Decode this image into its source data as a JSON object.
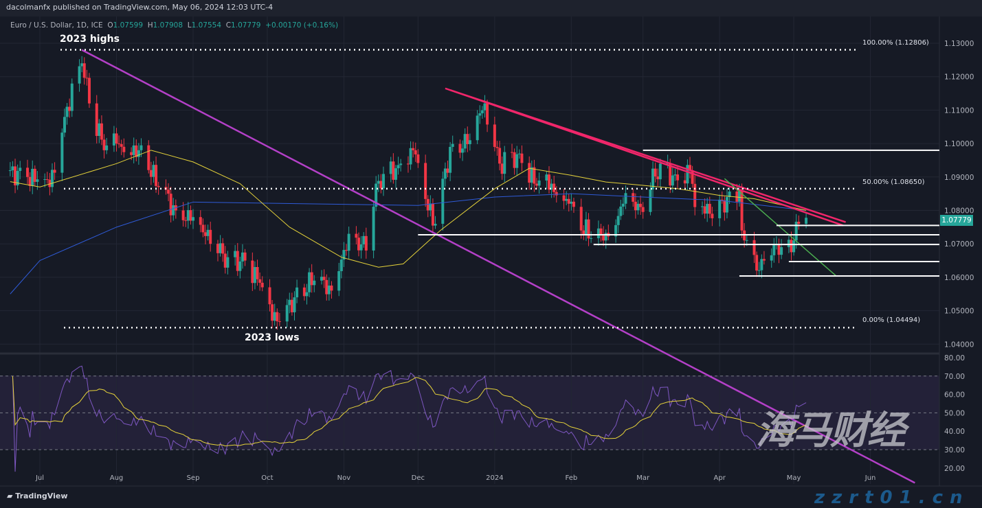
{
  "header": {
    "publisher": "dacolmanfx published on TradingView.com, May 06, 2024 12:03 UTC-4"
  },
  "legend": {
    "symbol": "Euro / U.S. Dollar, 1D, ICE",
    "o_label": "O",
    "o": "1.07599",
    "h_label": "H",
    "h": "1.07908",
    "l_label": "L",
    "l": "1.07554",
    "c_label": "C",
    "c": "1.07779",
    "change": "+0.00170 (+0.16%)"
  },
  "annotations": {
    "highs": "2023 highs",
    "lows": "2023 lows",
    "fib100": "100.00% (1.12806)",
    "fib50": "50.00% (1.08650)",
    "fib0": "0.00% (1.04494)"
  },
  "last_price": "1.07779",
  "footer": {
    "brand": "TradingView"
  },
  "watermark": {
    "cn": "海马财经",
    "url": "zzrt01.cn"
  },
  "colors": {
    "up": "#26a69a",
    "down": "#f23645",
    "ma_fast": "#e6d33a",
    "ma_slow": "#2f5bd8",
    "long_trend": "#b440c8",
    "resistance": "#f0266a",
    "wedge": "#4caf50",
    "rsi": "#7e57c2",
    "rsi_ma": "#e6d33a"
  },
  "chart_data": {
    "type": "candlestick",
    "symbol": "EURUSD 1D",
    "price_axis": {
      "ticks": [
        "1.13000",
        "1.12000",
        "1.11000",
        "1.10000",
        "1.09000",
        "1.08000",
        "1.07000",
        "1.06000",
        "1.05000",
        "1.04000"
      ],
      "range": [
        1.0385,
        1.1315
      ]
    },
    "time_axis": {
      "ticks": [
        [
          "2023-07-01",
          "Jul"
        ],
        [
          "2023-08-01",
          "Aug"
        ],
        [
          "2023-09-01",
          "Sep"
        ],
        [
          "2023-10-01",
          "Oct"
        ],
        [
          "2023-11-01",
          "Nov"
        ],
        [
          "2023-12-01",
          "Dec"
        ],
        [
          "2024-01-01",
          "2024"
        ],
        [
          "2024-02-01",
          "Feb"
        ],
        [
          "2024-03-01",
          "Mar"
        ],
        [
          "2024-04-01",
          "Apr"
        ],
        [
          "2024-05-01",
          "May"
        ],
        [
          "2024-06-01",
          "Jun"
        ]
      ]
    },
    "close_path": [
      [
        "2023-06-19",
        1.092
      ],
      [
        "2023-06-26",
        1.09
      ],
      [
        "2023-07-05",
        1.087
      ],
      [
        "2023-07-12",
        1.111
      ],
      [
        "2023-07-18",
        1.124
      ],
      [
        "2023-07-21",
        1.112
      ],
      [
        "2023-07-27",
        1.098
      ],
      [
        "2023-08-01",
        1.1
      ],
      [
        "2023-08-10",
        1.098
      ],
      [
        "2023-08-18",
        1.087
      ],
      [
        "2023-08-25",
        1.08
      ],
      [
        "2023-09-01",
        1.078
      ],
      [
        "2023-09-08",
        1.07
      ],
      [
        "2023-09-15",
        1.066
      ],
      [
        "2023-09-22",
        1.065
      ],
      [
        "2023-09-29",
        1.057
      ],
      [
        "2023-10-03",
        1.047
      ],
      [
        "2023-10-12",
        1.054
      ],
      [
        "2023-10-20",
        1.059
      ],
      [
        "2023-10-27",
        1.056
      ],
      [
        "2023-11-03",
        1.073
      ],
      [
        "2023-11-10",
        1.068
      ],
      [
        "2023-11-14",
        1.088
      ],
      [
        "2023-11-24",
        1.094
      ],
      [
        "2023-11-29",
        1.098
      ],
      [
        "2023-12-05",
        1.08
      ],
      [
        "2023-12-08",
        1.076
      ],
      [
        "2023-12-14",
        1.099
      ],
      [
        "2023-12-22",
        1.101
      ],
      [
        "2023-12-28",
        1.112
      ],
      [
        "2024-01-03",
        1.094
      ],
      [
        "2024-01-11",
        1.097
      ],
      [
        "2024-01-17",
        1.088
      ],
      [
        "2024-01-24",
        1.088
      ],
      [
        "2024-01-31",
        1.082
      ],
      [
        "2024-02-05",
        1.074
      ],
      [
        "2024-02-14",
        1.071
      ],
      [
        "2024-02-22",
        1.082
      ],
      [
        "2024-02-29",
        1.081
      ],
      [
        "2024-03-08",
        1.094
      ],
      [
        "2024-03-15",
        1.089
      ],
      [
        "2024-03-20",
        1.092
      ],
      [
        "2024-03-22",
        1.081
      ],
      [
        "2024-03-28",
        1.079
      ],
      [
        "2024-04-04",
        1.084
      ],
      [
        "2024-04-09",
        1.086
      ],
      [
        "2024-04-10",
        1.074
      ],
      [
        "2024-04-16",
        1.062
      ],
      [
        "2024-04-19",
        1.065
      ],
      [
        "2024-04-24",
        1.07
      ],
      [
        "2024-04-26",
        1.069
      ],
      [
        "2024-05-01",
        1.071
      ],
      [
        "2024-05-03",
        1.076
      ],
      [
        "2024-05-06",
        1.0778
      ]
    ],
    "ma_fast": [
      [
        "2023-06-19",
        1.0886
      ],
      [
        "2023-07-01",
        1.087
      ],
      [
        "2023-08-01",
        1.094
      ],
      [
        "2023-08-15",
        1.098
      ],
      [
        "2023-09-01",
        1.0945
      ],
      [
        "2023-09-20",
        1.088
      ],
      [
        "2023-10-10",
        1.075
      ],
      [
        "2023-10-31",
        1.066
      ],
      [
        "2023-11-15",
        1.063
      ],
      [
        "2023-11-25",
        1.064
      ],
      [
        "2023-12-10",
        1.074
      ],
      [
        "2024-01-01",
        1.0865
      ],
      [
        "2024-01-15",
        1.0926
      ],
      [
        "2024-02-01",
        1.0905
      ],
      [
        "2024-02-15",
        1.0885
      ],
      [
        "2024-03-01",
        1.0875
      ],
      [
        "2024-03-15",
        1.0865
      ],
      [
        "2024-04-01",
        1.0845
      ],
      [
        "2024-04-15",
        1.0835
      ],
      [
        "2024-05-06",
        1.08
      ]
    ],
    "ma_slow": [
      [
        "2023-06-19",
        1.055
      ],
      [
        "2023-07-01",
        1.065
      ],
      [
        "2023-08-01",
        1.075
      ],
      [
        "2023-09-01",
        1.0825
      ],
      [
        "2023-10-15",
        1.082
      ],
      [
        "2023-12-01",
        1.0815
      ],
      [
        "2024-01-01",
        1.084
      ],
      [
        "2024-02-01",
        1.085
      ],
      [
        "2024-03-01",
        1.084
      ],
      [
        "2024-04-01",
        1.083
      ],
      [
        "2024-05-06",
        1.08
      ]
    ],
    "drawings": {
      "long_trend": [
        [
          "2023-07-18",
          1.128
        ],
        [
          "2024-06-19",
          0.9985
        ]
      ],
      "resistance_a": [
        [
          "2023-12-12",
          1.1165
        ],
        [
          "2024-05-21",
          1.0755
        ]
      ],
      "resistance_b": [
        [
          "2023-12-14",
          1.116
        ],
        [
          "2024-05-22",
          1.0765
        ]
      ],
      "wedge": [
        [
          "2024-04-03",
          1.0895
        ],
        [
          "2024-05-18",
          1.0605
        ]
      ],
      "levels": [
        {
          "from": "2024-03-01",
          "price": 1.098
        },
        {
          "from": "2024-04-24",
          "price": 1.0755
        },
        {
          "from": "2023-12-01",
          "price": 1.0727
        },
        {
          "from": "2024-02-10",
          "price": 1.0698
        },
        {
          "from": "2024-04-29",
          "price": 1.0647
        },
        {
          "from": "2024-04-09",
          "price": 1.0604
        }
      ],
      "fib_levels": [
        1.12806,
        1.0865,
        1.04494
      ]
    },
    "rsi_axis": {
      "ticks": [
        "80.00",
        "70.00",
        "60.00",
        "50.00",
        "40.00",
        "30.00",
        "20.00"
      ],
      "range": [
        15,
        82
      ],
      "band": [
        30,
        70
      ]
    }
  }
}
